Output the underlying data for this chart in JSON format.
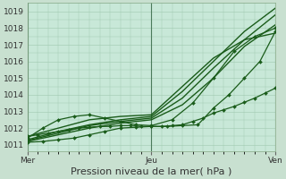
{
  "xlabel": "Pression niveau de la mer( hPa )",
  "bg_color": "#c8e0d0",
  "plot_bg_color": "#c8e8d8",
  "grid_color": "#a0c8b0",
  "line_color": "#1a5c1a",
  "xlim": [
    0,
    48
  ],
  "ylim": [
    1010.6,
    1019.5
  ],
  "yticks": [
    1011,
    1012,
    1013,
    1014,
    1015,
    1016,
    1017,
    1018,
    1019
  ],
  "xtick_positions": [
    0,
    24,
    48
  ],
  "xtick_labels": [
    "Mer",
    "Jeu",
    "Ven"
  ],
  "xlabel_fontsize": 8,
  "tick_fontsize": 6.5,
  "series": [
    {
      "x": [
        0,
        2,
        4,
        6,
        8,
        10,
        12,
        14,
        16,
        18,
        20,
        22,
        24,
        26,
        28,
        30,
        32,
        34,
        36,
        38,
        40,
        42,
        44,
        46,
        48
      ],
      "y": [
        1011.5,
        1011.6,
        1011.7,
        1011.8,
        1011.9,
        1012.0,
        1012.05,
        1012.1,
        1012.1,
        1012.15,
        1012.15,
        1012.1,
        1012.1,
        1012.1,
        1012.15,
        1012.2,
        1012.4,
        1012.6,
        1012.9,
        1013.1,
        1013.3,
        1013.55,
        1013.8,
        1014.1,
        1014.4
      ],
      "marker": "D",
      "markersize": 2.0,
      "linestyle": "-",
      "linewidth": 0.9
    },
    {
      "x": [
        0,
        3,
        6,
        9,
        12,
        15,
        18,
        21,
        24,
        27,
        30,
        33,
        36,
        39,
        42,
        45,
        48
      ],
      "y": [
        1011.15,
        1011.2,
        1011.3,
        1011.4,
        1011.6,
        1011.8,
        1012.0,
        1012.05,
        1012.1,
        1012.1,
        1012.15,
        1012.2,
        1013.2,
        1014.0,
        1015.0,
        1016.0,
        1017.8
      ],
      "marker": "D",
      "markersize": 2.0,
      "linestyle": "-",
      "linewidth": 0.9
    },
    {
      "x": [
        0,
        6,
        12,
        18,
        24,
        30,
        36,
        42,
        48
      ],
      "y": [
        1011.3,
        1011.8,
        1012.2,
        1012.5,
        1012.7,
        1014.2,
        1016.0,
        1017.8,
        1019.2
      ],
      "marker": null,
      "markersize": 0,
      "linestyle": "-",
      "linewidth": 1.0
    },
    {
      "x": [
        0,
        6,
        12,
        18,
        24,
        30,
        36,
        42,
        48
      ],
      "y": [
        1011.25,
        1011.7,
        1012.15,
        1012.4,
        1012.6,
        1013.8,
        1015.6,
        1017.3,
        1018.8
      ],
      "marker": null,
      "markersize": 0,
      "linestyle": "-",
      "linewidth": 1.0
    },
    {
      "x": [
        0,
        6,
        12,
        18,
        24,
        30,
        36,
        42,
        48
      ],
      "y": [
        1011.2,
        1011.6,
        1012.0,
        1012.3,
        1012.5,
        1013.4,
        1015.0,
        1016.9,
        1018.2
      ],
      "marker": null,
      "markersize": 0,
      "linestyle": "-",
      "linewidth": 1.0
    },
    {
      "x": [
        0,
        6,
        12,
        18,
        24,
        30,
        36,
        42,
        48
      ],
      "y": [
        1011.5,
        1012.0,
        1012.5,
        1012.7,
        1012.8,
        1014.5,
        1016.2,
        1017.3,
        1017.7
      ],
      "marker": null,
      "markersize": 0,
      "linestyle": "-",
      "linewidth": 1.0
    },
    {
      "x": [
        0,
        3,
        6,
        9,
        12,
        15,
        18,
        21,
        24,
        28,
        32,
        36,
        40,
        44,
        48
      ],
      "y": [
        1011.4,
        1012.0,
        1012.5,
        1012.7,
        1012.8,
        1012.6,
        1012.4,
        1012.2,
        1012.15,
        1012.5,
        1013.5,
        1015.0,
        1016.6,
        1017.5,
        1018.0
      ],
      "marker": "D",
      "markersize": 2.0,
      "linestyle": "-",
      "linewidth": 0.9
    }
  ]
}
